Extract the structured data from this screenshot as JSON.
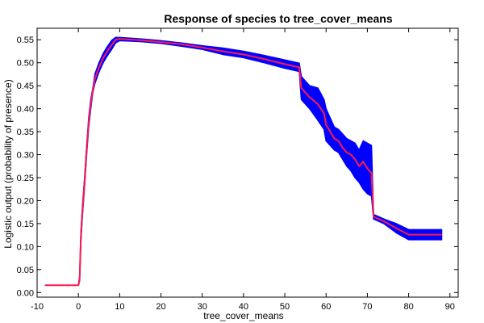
{
  "chart_data": {
    "type": "line",
    "title": "Response of species to tree_cover_means",
    "xlabel": "tree_cover_means",
    "ylabel": "Logistic output (probability of presence)",
    "xlim": [
      -10,
      92
    ],
    "ylim": [
      -0.01,
      0.575
    ],
    "xticks": [
      -10,
      0,
      10,
      20,
      30,
      40,
      50,
      60,
      70,
      80,
      90
    ],
    "yticks": [
      0.0,
      0.05,
      0.1,
      0.15,
      0.2,
      0.25,
      0.3,
      0.35,
      0.4,
      0.45,
      0.5,
      0.55
    ],
    "grid": false,
    "colors": {
      "mean_line": "#ff1a4a",
      "band": "#0000ff"
    },
    "series": [
      {
        "kind": "line",
        "x": [
          -8,
          -6,
          -4,
          -2,
          0,
          0.3,
          0.6,
          1.0,
          1.5,
          2.0,
          2.5,
          3.0,
          3.5,
          4.0,
          5,
          6,
          7,
          8,
          9,
          10,
          15,
          20,
          25,
          30,
          35,
          40,
          45,
          50,
          53.5,
          54,
          56,
          58,
          59.5,
          60,
          61,
          62,
          63,
          64,
          65,
          66,
          67,
          68,
          69,
          70,
          71,
          71.5,
          74,
          77,
          80,
          84,
          88
        ],
        "y": [
          0.016,
          0.016,
          0.016,
          0.016,
          0.016,
          0.03,
          0.12,
          0.18,
          0.24,
          0.31,
          0.37,
          0.41,
          0.44,
          0.465,
          0.49,
          0.51,
          0.525,
          0.538,
          0.55,
          0.552,
          0.549,
          0.545,
          0.54,
          0.533,
          0.525,
          0.518,
          0.508,
          0.497,
          0.49,
          0.445,
          0.425,
          0.41,
          0.39,
          0.365,
          0.35,
          0.335,
          0.33,
          0.315,
          0.305,
          0.3,
          0.29,
          0.275,
          0.285,
          0.27,
          0.26,
          0.165,
          0.155,
          0.14,
          0.126,
          0.126,
          0.126
        ]
      },
      {
        "kind": "band",
        "x": [
          -8,
          -6,
          -4,
          -2,
          0,
          0.3,
          0.6,
          1.0,
          1.5,
          2.0,
          2.5,
          3.0,
          3.5,
          4.0,
          5,
          6,
          7,
          8,
          9,
          10,
          15,
          20,
          25,
          30,
          35,
          40,
          45,
          50,
          53.5,
          54,
          56,
          58,
          59.5,
          60,
          61,
          62,
          63,
          64,
          65,
          66,
          67,
          68,
          69,
          70,
          71,
          71.5,
          74,
          77,
          80,
          84,
          88
        ],
        "lower": [
          0.016,
          0.016,
          0.016,
          0.016,
          0.016,
          0.025,
          0.11,
          0.17,
          0.23,
          0.3,
          0.36,
          0.4,
          0.435,
          0.455,
          0.48,
          0.5,
          0.515,
          0.528,
          0.543,
          0.548,
          0.546,
          0.542,
          0.536,
          0.529,
          0.518,
          0.511,
          0.5,
          0.488,
          0.481,
          0.42,
          0.4,
          0.375,
          0.355,
          0.33,
          0.32,
          0.31,
          0.305,
          0.29,
          0.275,
          0.265,
          0.25,
          0.24,
          0.225,
          0.215,
          0.21,
          0.16,
          0.15,
          0.13,
          0.115,
          0.115,
          0.115
        ],
        "upper": [
          0.016,
          0.016,
          0.016,
          0.016,
          0.016,
          0.035,
          0.13,
          0.19,
          0.25,
          0.32,
          0.38,
          0.42,
          0.445,
          0.475,
          0.5,
          0.52,
          0.535,
          0.548,
          0.555,
          0.555,
          0.552,
          0.548,
          0.543,
          0.537,
          0.532,
          0.525,
          0.516,
          0.506,
          0.499,
          0.47,
          0.45,
          0.445,
          0.42,
          0.4,
          0.38,
          0.36,
          0.355,
          0.345,
          0.335,
          0.33,
          0.325,
          0.31,
          0.33,
          0.325,
          0.32,
          0.17,
          0.16,
          0.15,
          0.137,
          0.137,
          0.137
        ]
      }
    ]
  }
}
